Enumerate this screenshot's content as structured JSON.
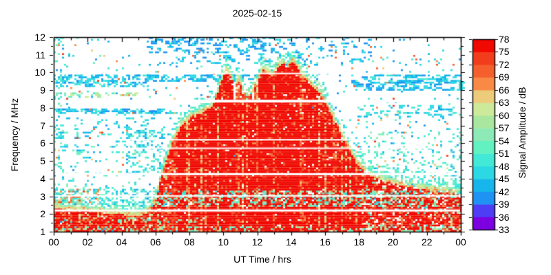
{
  "chart_data": {
    "type": "heatmap",
    "title": "2025-02-15",
    "xlabel": "UT Time / hrs",
    "ylabel": "Frequency / MHz",
    "x_range_hours": [
      0,
      24
    ],
    "y_range_mhz": [
      1,
      12
    ],
    "x_tick_labels": [
      "00",
      "02",
      "04",
      "06",
      "08",
      "10",
      "12",
      "14",
      "16",
      "18",
      "20",
      "22",
      "00"
    ],
    "y_tick_labels": [
      "1",
      "2",
      "3",
      "4",
      "5",
      "6",
      "7",
      "8",
      "9",
      "10",
      "11",
      "12"
    ],
    "grid": false,
    "background": "#ffffff",
    "frame_color": "#000000",
    "text_color": "#000000",
    "colorbar": {
      "label": "Signal Amplitude / dB",
      "min_db": 33,
      "max_db": 78,
      "tick_values_db": [
        33,
        36,
        39,
        42,
        45,
        48,
        51,
        54,
        57,
        60,
        63,
        66,
        69,
        72,
        75,
        78
      ],
      "segment_colors_low_to_high": [
        "#7c00e0",
        "#4f3cf5",
        "#1f93f3",
        "#16b6ec",
        "#2bd8e4",
        "#41e9d6",
        "#62f2c2",
        "#8deab6",
        "#a9e79f",
        "#cdea9a",
        "#eccb7b",
        "#f98a45",
        "#f55f2e",
        "#f23d1c",
        "#f10800"
      ]
    },
    "envelope_max_freq_mhz": {
      "hours": [
        0,
        2,
        4,
        5,
        5.6,
        6,
        6.5,
        7,
        7.5,
        8,
        8.7,
        9.4,
        9.9,
        10.2,
        10.45,
        10.7,
        10.9,
        11.1,
        11.4,
        11.7,
        12,
        12.3,
        12.6,
        12.9,
        13.2,
        13.5,
        13.8,
        14.05,
        14.3,
        14.6,
        14.9,
        15.2,
        15.6,
        16,
        16.4,
        16.8,
        17.2,
        17.6,
        18,
        18.5,
        19,
        19.5,
        20,
        21,
        22,
        23,
        24
      ],
      "mhz": [
        2.6,
        2.45,
        2.25,
        2.15,
        2.4,
        3.1,
        4.9,
        6.3,
        7.2,
        7.7,
        8.0,
        8.4,
        9.8,
        10.45,
        10.0,
        9.5,
        9.95,
        9.3,
        8.9,
        9.1,
        9.7,
        10.45,
        10.3,
        10.0,
        10.55,
        10.8,
        10.5,
        10.9,
        10.65,
        10.2,
        9.85,
        9.55,
        9.2,
        8.6,
        7.8,
        7.1,
        6.3,
        5.6,
        5.0,
        4.55,
        4.3,
        4.15,
        4.0,
        3.8,
        3.65,
        3.5,
        3.45
      ]
    },
    "interference_gaps": [
      {
        "mhz": 9.95,
        "px": 2
      },
      {
        "mhz": 8.38,
        "px": 4
      },
      {
        "mhz": 6.2,
        "px": 2
      },
      {
        "mhz": 5.72,
        "px": 2
      },
      {
        "mhz": 4.25,
        "px": 3
      },
      {
        "mhz": 3.02,
        "px": 2
      },
      {
        "mhz": 2.2,
        "px": 3
      }
    ],
    "noise_bands": [
      {
        "f": [
          9.2,
          9.8
        ],
        "t": [
          0,
          5.5
        ],
        "d": 0.4,
        "v": [
          41,
          49
        ],
        "dash": 2
      },
      {
        "f": [
          9.5,
          9.78
        ],
        "t": [
          5.5,
          12.5
        ],
        "d": 0.33,
        "v": [
          41,
          48
        ],
        "dash": 3
      },
      {
        "f": [
          8.6,
          8.85
        ],
        "t": [
          0,
          5.3
        ],
        "d": 0.22,
        "v": [
          52,
          63
        ],
        "dash": 2
      },
      {
        "f": [
          7.7,
          7.95
        ],
        "t": [
          0,
          7
        ],
        "d": 0.45,
        "v": [
          41,
          49
        ],
        "dash": 3
      },
      {
        "f": [
          6.3,
          6.65
        ],
        "t": [
          0,
          6.8
        ],
        "d": 0.15,
        "v": [
          42,
          52
        ],
        "dash": 2
      },
      {
        "f": [
          4.4,
          6.8
        ],
        "t": [
          4.3,
          6.4
        ],
        "d": 0.28,
        "v": [
          42,
          53
        ],
        "dash": 1
      },
      {
        "f": [
          5.2,
          6.1
        ],
        "t": [
          0,
          4.4
        ],
        "d": 0.1,
        "v": [
          42,
          52
        ],
        "dash": 2
      },
      {
        "f": [
          2.38,
          3.35
        ],
        "t": [
          0,
          24
        ],
        "d": 0.3,
        "v": [
          42,
          56
        ],
        "dash": 1
      },
      {
        "f": [
          2.55,
          3.4
        ],
        "t": [
          0,
          2.6
        ],
        "d": 0.3,
        "v": [
          60,
          74
        ],
        "dash": 1
      },
      {
        "f": [
          11.1,
          12
        ],
        "t": [
          5.6,
          13.2
        ],
        "d": 0.2,
        "v": [
          39,
          46
        ],
        "dash": 2
      },
      {
        "f": [
          10.4,
          12
        ],
        "t": [
          6.3,
          18.6
        ],
        "d": 0.09,
        "v": [
          39,
          48
        ],
        "dash": 2
      },
      {
        "f": [
          9,
          9.8
        ],
        "t": [
          17.6,
          24
        ],
        "d": 0.32,
        "v": [
          41,
          49
        ],
        "dash": 3
      },
      {
        "f": [
          7.5,
          8.1
        ],
        "t": [
          18,
          24
        ],
        "d": 0.16,
        "v": [
          42,
          50
        ],
        "dash": 2
      },
      {
        "f": [
          4,
          6.6
        ],
        "t": [
          17.5,
          24
        ],
        "d": 0.13,
        "v": [
          44,
          57
        ],
        "dash": 1
      },
      {
        "f": [
          3.3,
          4.4
        ],
        "t": [
          0,
          5.8
        ],
        "d": 0.1,
        "v": [
          44,
          56
        ],
        "dash": 1
      },
      {
        "f": [
          1,
          12
        ],
        "t": [
          0,
          24
        ],
        "d": 0.03,
        "v": [
          40,
          52
        ],
        "dash": 1
      },
      {
        "f": [
          3.5,
          11.5
        ],
        "t": [
          0,
          24
        ],
        "d": 0.01,
        "v": [
          62,
          74
        ],
        "dash": 1
      },
      {
        "f": [
          9.9,
          11.6
        ],
        "t": [
          0,
          0.9
        ],
        "d": 0.07,
        "v": [
          41,
          50
        ],
        "dash": 1
      },
      {
        "f": [
          1,
          12
        ],
        "t": [
          0,
          0.5
        ],
        "d": 0.15,
        "v": [
          42,
          56
        ],
        "dash": 1
      },
      {
        "f": [
          6.7,
          7.4
        ],
        "t": [
          0,
          6.2
        ],
        "d": 0.08,
        "v": [
          42,
          52
        ],
        "dash": 2
      }
    ],
    "echo_region": {
      "base_db": 77,
      "mixed_band_mhz": [
        2.45,
        3.35
      ],
      "hole_p": 0.025,
      "decay_start_hour": 18.2,
      "valley": {
        "t": [
          10.6,
          12.1
        ],
        "f_above": 8.45
      },
      "white_slot": {
        "t": [
          10.55,
          10.78
        ],
        "f_above": 8.45
      }
    }
  }
}
